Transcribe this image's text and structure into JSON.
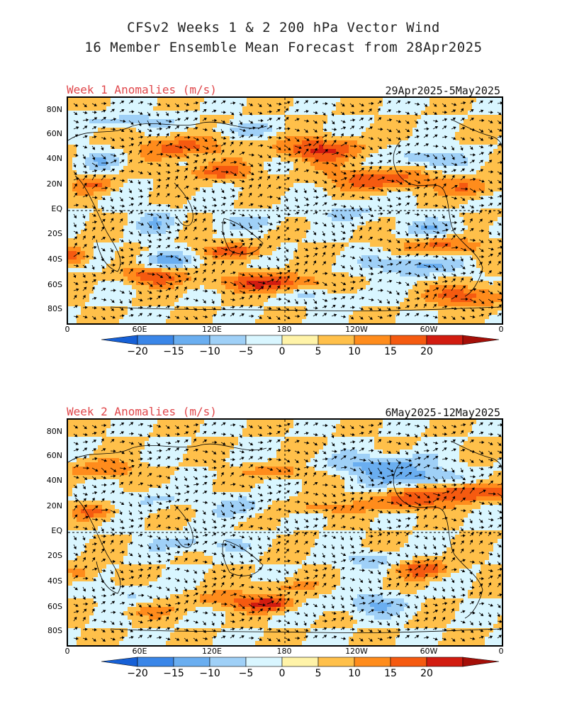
{
  "header": {
    "title_line1": "CFSv2 Weeks 1 & 2 200 hPa Vector Wind",
    "title_line2": "16 Member Ensemble Mean Forecast from 28Apr2025"
  },
  "panels": [
    {
      "label": "Week 1 Anomalies (m/s)",
      "dates": "29Apr2025-5May2025"
    },
    {
      "label": "Week 2 Anomalies (m/s)",
      "dates": "6May2025-12May2025"
    }
  ],
  "axes": {
    "lat_labels": [
      "80N",
      "60N",
      "40N",
      "20N",
      "EQ",
      "20S",
      "40S",
      "60S",
      "80S"
    ],
    "lon_labels": [
      "0",
      "60E",
      "120E",
      "180",
      "120W",
      "60W",
      "0"
    ]
  },
  "colorbar": {
    "labels": [
      "-20",
      "-15",
      "-10",
      "-5",
      "0",
      "5",
      "10",
      "15",
      "20"
    ],
    "colors": [
      "#1660d6",
      "#3a86e8",
      "#6aaef0",
      "#9fd0f7",
      "#d9f6ff",
      "#fff3a8",
      "#ffc04a",
      "#ff8c1c",
      "#f55a10",
      "#d21c10",
      "#a50f08"
    ]
  }
}
